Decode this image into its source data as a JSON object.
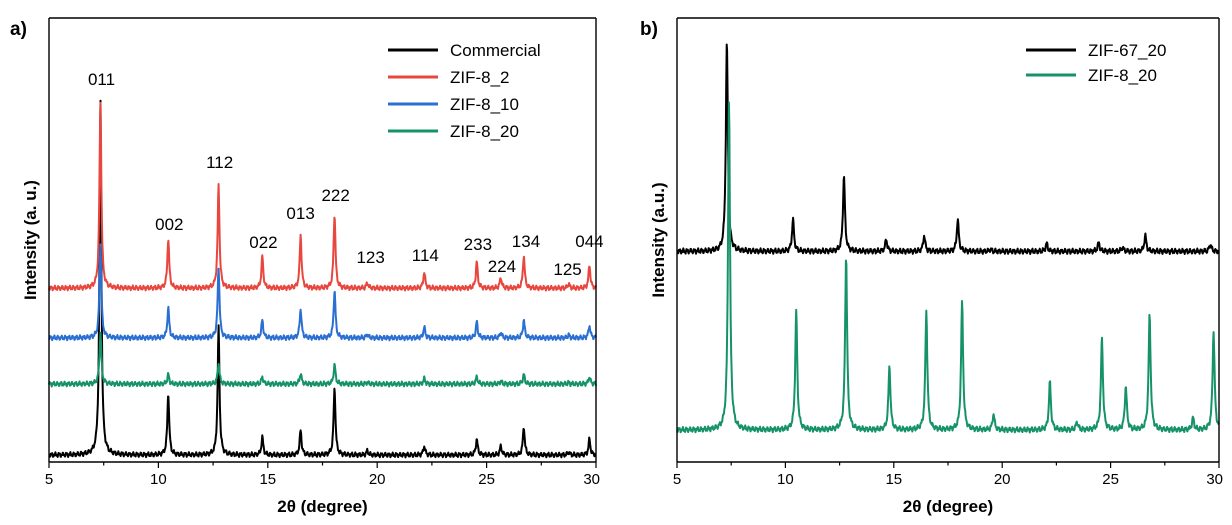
{
  "chart_data": [
    {
      "panel": "a)",
      "type": "line",
      "xlabel": "2θ (degree)",
      "ylabel": "Intensity (a. u.)",
      "xlim": [
        5,
        30
      ],
      "xticks": [
        5,
        10,
        15,
        20,
        25,
        30
      ],
      "legend_position": "top-right",
      "peaks": [
        7.35,
        10.45,
        12.75,
        14.75,
        16.5,
        18.05,
        19.55,
        22.15,
        24.55,
        25.65,
        26.7,
        28.75,
        29.7
      ],
      "series": [
        {
          "name": "Commercial",
          "color": "#000000",
          "baseline": 0.0,
          "heights": [
            1.0,
            0.175,
            0.36,
            0.05,
            0.07,
            0.19,
            0.012,
            0.025,
            0.045,
            0.025,
            0.08,
            0.008,
            0.045
          ]
        },
        {
          "name": "ZIF-8_2",
          "color": "#e8473f",
          "baseline": 0.47,
          "heights": [
            0.53,
            0.14,
            0.29,
            0.09,
            0.15,
            0.21,
            0.015,
            0.045,
            0.075,
            0.03,
            0.092,
            0.012,
            0.065
          ]
        },
        {
          "name": "ZIF-8_10",
          "color": "#2a6fd1",
          "baseline": 0.33,
          "heights": [
            0.27,
            0.085,
            0.2,
            0.05,
            0.082,
            0.135,
            0.01,
            0.03,
            0.045,
            0.015,
            0.05,
            0.008,
            0.035
          ]
        },
        {
          "name": "ZIF-8_20",
          "color": "#169268",
          "baseline": 0.2,
          "heights": [
            0.145,
            0.027,
            0.06,
            0.02,
            0.03,
            0.055,
            0.005,
            0.015,
            0.02,
            0.008,
            0.027,
            0.004,
            0.02
          ]
        }
      ],
      "annotations": [
        {
          "text": "011",
          "x": 7.4
        },
        {
          "text": "002",
          "x": 10.5
        },
        {
          "text": "112",
          "x": 12.8
        },
        {
          "text": "022",
          "x": 14.8
        },
        {
          "text": "013",
          "x": 16.5
        },
        {
          "text": "222",
          "x": 18.1
        },
        {
          "text": "123",
          "x": 19.7
        },
        {
          "text": "114",
          "x": 22.2
        },
        {
          "text": "233",
          "x": 24.6
        },
        {
          "text": "224",
          "x": 25.7
        },
        {
          "text": "134",
          "x": 26.8
        },
        {
          "text": "125",
          "x": 28.7
        },
        {
          "text": "044",
          "x": 29.7
        }
      ]
    },
    {
      "panel": "b)",
      "type": "line",
      "xlabel": "2θ (degree)",
      "ylabel": "Intensity (a.u.)",
      "xlim": [
        5,
        30
      ],
      "xticks": [
        5,
        10,
        15,
        20,
        25,
        30
      ],
      "legend_position": "top-right",
      "series": [
        {
          "name": "ZIF-67_20",
          "color": "#000000",
          "baseline": 0.45,
          "peaks": [
            7.3,
            10.35,
            12.7,
            14.65,
            16.4,
            17.95,
            19.45,
            22.05,
            24.45,
            25.55,
            26.6,
            29.6
          ],
          "heights": [
            0.53,
            0.08,
            0.19,
            0.03,
            0.04,
            0.08,
            0.005,
            0.02,
            0.022,
            0.01,
            0.04,
            0.018
          ]
        },
        {
          "name": "ZIF-8_20",
          "color": "#169268",
          "baseline": 0.0,
          "peaks": [
            7.4,
            10.5,
            12.8,
            14.8,
            16.5,
            18.15,
            19.6,
            22.2,
            23.45,
            24.6,
            25.7,
            26.8,
            28.8,
            29.75
          ],
          "heights": [
            0.83,
            0.3,
            0.44,
            0.16,
            0.3,
            0.32,
            0.04,
            0.12,
            0.02,
            0.23,
            0.11,
            0.29,
            0.03,
            0.25
          ]
        }
      ]
    }
  ]
}
